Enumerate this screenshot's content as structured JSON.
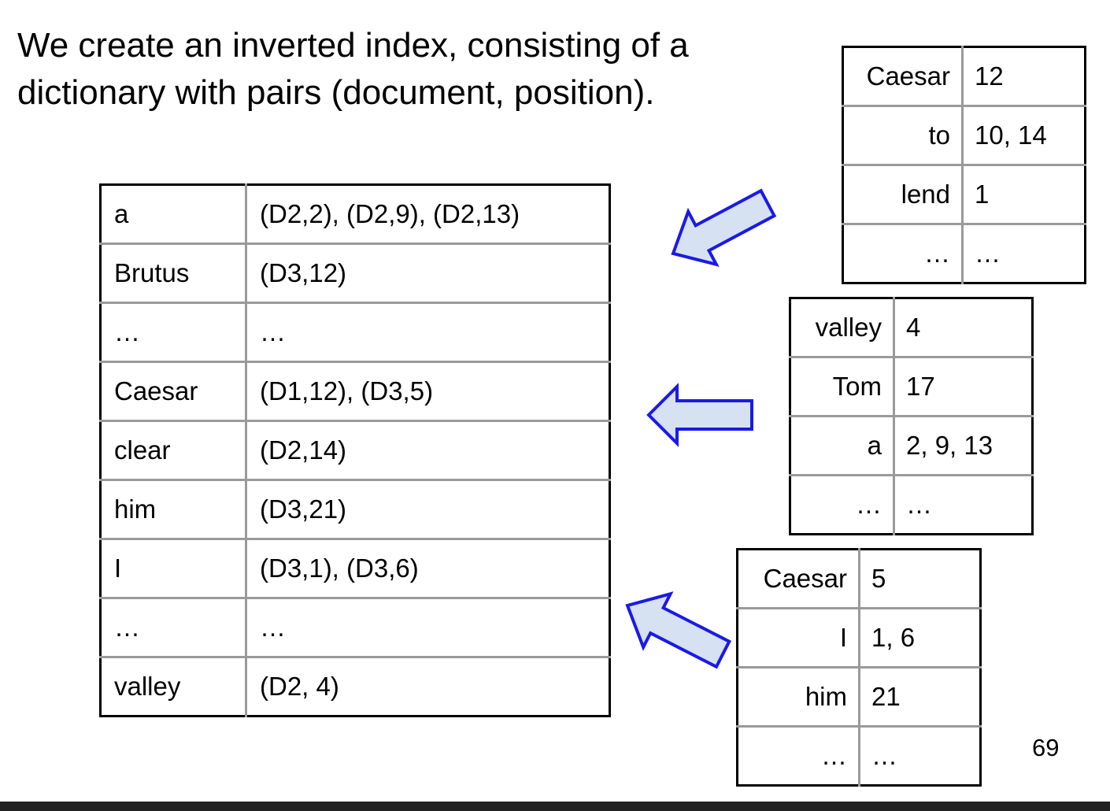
{
  "slide": {
    "heading": "We create an inverted index, consisting of a dictionary with pairs (document, position).",
    "page_number": "69"
  },
  "index_table": {
    "rows": [
      {
        "term": "a",
        "postings": "(D2,2), (D2,9), (D2,13)"
      },
      {
        "term": "Brutus",
        "postings": "(D3,12)"
      },
      {
        "term": "…",
        "postings": "…"
      },
      {
        "term": "Caesar",
        "postings": "(D1,12), (D3,5)"
      },
      {
        "term": "clear",
        "postings": "(D2,14)"
      },
      {
        "term": "him",
        "postings": "(D3,21)"
      },
      {
        "term": "I",
        "postings": "(D3,1), (D3,6)"
      },
      {
        "term": "…",
        "postings": "…"
      },
      {
        "term": "valley",
        "postings": "(D2, 4)"
      }
    ]
  },
  "doc_tables": [
    {
      "rows": [
        {
          "term": "Caesar",
          "positions": "12"
        },
        {
          "term": "to",
          "positions": "10, 14"
        },
        {
          "term": "lend",
          "positions": "1"
        },
        {
          "term": "…",
          "positions": "…"
        }
      ]
    },
    {
      "rows": [
        {
          "term": "valley",
          "positions": "4"
        },
        {
          "term": "Tom",
          "positions": "17"
        },
        {
          "term": "a",
          "positions": "2, 9, 13"
        },
        {
          "term": "…",
          "positions": "…"
        }
      ]
    },
    {
      "rows": [
        {
          "term": "Caesar",
          "positions": "5"
        },
        {
          "term": "I",
          "positions": "1, 6"
        },
        {
          "term": "him",
          "positions": "21"
        },
        {
          "term": "…",
          "positions": "…"
        }
      ]
    }
  ],
  "colors": {
    "arrow_fill": "#d6e1f2",
    "arrow_stroke": "#1a1ae6",
    "table_border": "#000000",
    "grid_line": "#9a9a9a"
  },
  "icons": [
    "arrow-left-icon"
  ]
}
